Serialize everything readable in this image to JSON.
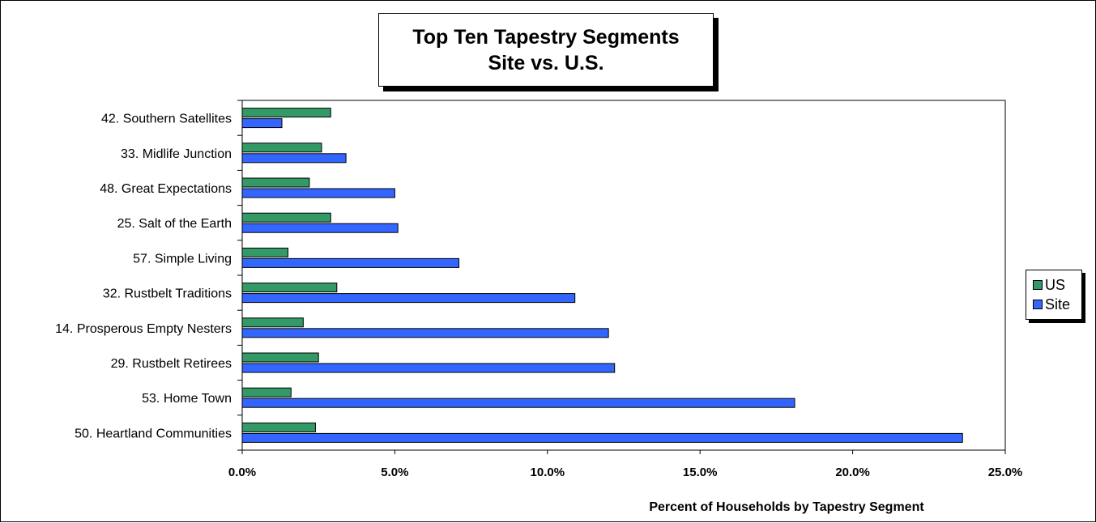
{
  "chart_data": {
    "type": "bar",
    "orientation": "horizontal",
    "title": "Top Ten Tapestry Segments",
    "subtitle": "Site vs. U.S.",
    "xlabel": "Percent of Households by Tapestry Segment",
    "ylabel": "",
    "xlim": [
      0,
      0.25
    ],
    "xticks": [
      "0.0%",
      "5.0%",
      "10.0%",
      "15.0%",
      "20.0%",
      "25.0%"
    ],
    "grid": false,
    "legend_position": "right",
    "categories": [
      "42. Southern Satellites",
      "33. Midlife Junction",
      "48. Great Expectations",
      "25. Salt of the Earth",
      "57. Simple Living",
      "32. Rustbelt Traditions",
      "14. Prosperous Empty Nesters",
      "29. Rustbelt Retirees",
      "53. Home Town",
      "50. Heartland Communities"
    ],
    "series": [
      {
        "name": "US",
        "color": "#339966",
        "values": [
          0.029,
          0.026,
          0.022,
          0.029,
          0.015,
          0.031,
          0.02,
          0.025,
          0.016,
          0.024
        ]
      },
      {
        "name": "Site",
        "color": "#3366FF",
        "values": [
          0.013,
          0.034,
          0.05,
          0.051,
          0.071,
          0.109,
          0.12,
          0.122,
          0.181,
          0.236
        ]
      }
    ]
  }
}
